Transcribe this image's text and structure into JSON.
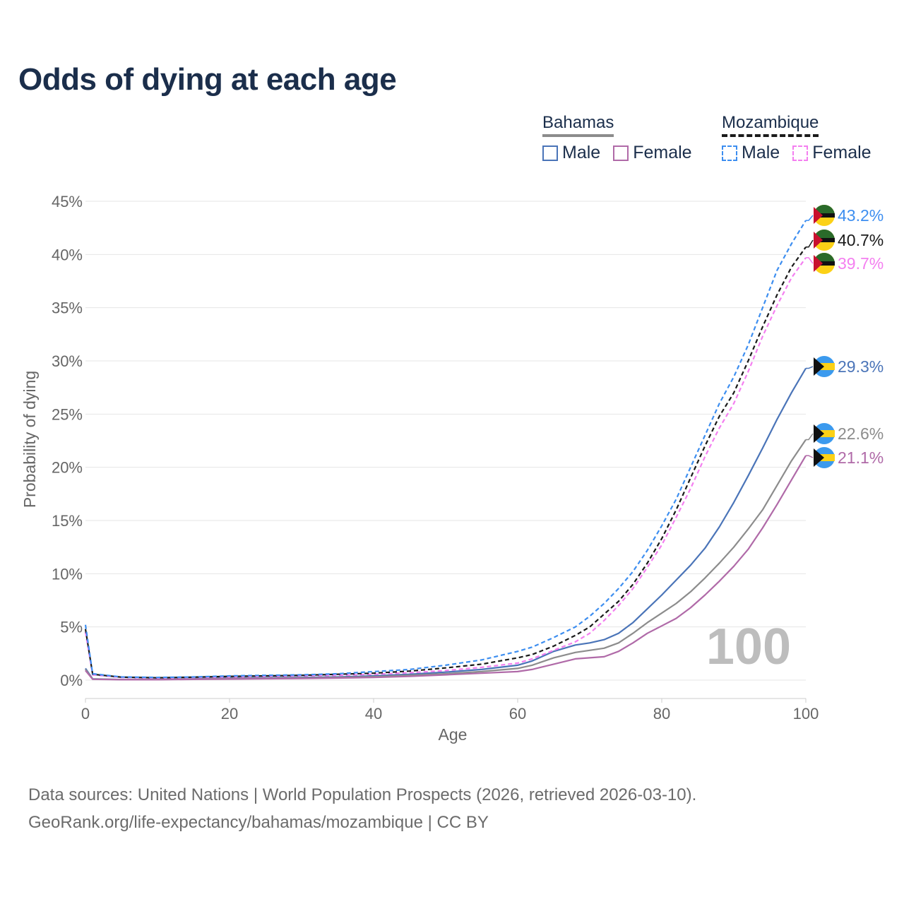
{
  "title": "Odds of dying at each age",
  "legend": {
    "groups": [
      {
        "name": "Bahamas",
        "style": "solid",
        "items": [
          {
            "label": "Male",
            "color": "#4a74b8"
          },
          {
            "label": "Female",
            "color": "#b06aa8"
          }
        ]
      },
      {
        "name": "Mozambique",
        "style": "dashed",
        "items": [
          {
            "label": "Male",
            "color": "#3d8ef0"
          },
          {
            "label": "Female",
            "color": "#f47ff0"
          }
        ]
      }
    ]
  },
  "watermark": "100",
  "sources": {
    "line1": "Data sources: United Nations | World Population Prospects (2026, retrieved 2026-03-10).",
    "line2": "GeoRank.org/life-expectancy/bahamas/mozambique | CC BY"
  },
  "chart_data": {
    "type": "line",
    "title": "Odds of dying at each age",
    "xlabel": "Age",
    "ylabel": "Probability of dying",
    "xlim": [
      0,
      100
    ],
    "ylim": [
      0,
      45
    ],
    "xticks": [
      0,
      20,
      40,
      60,
      80,
      100
    ],
    "yticks": [
      0,
      5,
      10,
      15,
      20,
      25,
      30,
      35,
      40,
      45
    ],
    "ytick_labels": [
      "0%",
      "5%",
      "10%",
      "15%",
      "20%",
      "25%",
      "30%",
      "35%",
      "40%",
      "45%"
    ],
    "grid": true,
    "x": [
      0,
      1,
      5,
      10,
      15,
      20,
      25,
      30,
      35,
      40,
      45,
      50,
      55,
      60,
      62,
      65,
      68,
      70,
      72,
      74,
      76,
      78,
      80,
      82,
      84,
      86,
      88,
      90,
      92,
      94,
      96,
      98,
      100
    ],
    "series": [
      {
        "name": "Mozambique Male",
        "country": "Mozambique",
        "sex": "Male",
        "color": "#3d8ef0",
        "dash": true,
        "end_label": "43.2%",
        "values": [
          5.2,
          0.6,
          0.3,
          0.25,
          0.3,
          0.4,
          0.45,
          0.5,
          0.6,
          0.8,
          1.0,
          1.4,
          1.9,
          2.7,
          3.1,
          4.0,
          5.0,
          6.0,
          7.2,
          8.6,
          10.2,
          12.2,
          14.5,
          17.0,
          20.0,
          23.0,
          26.0,
          28.5,
          31.5,
          35.0,
          38.5,
          41.0,
          43.2
        ]
      },
      {
        "name": "Mozambique Total",
        "country": "Mozambique",
        "sex": "Total",
        "color": "#1a1a1a",
        "dash": true,
        "end_label": "40.7%",
        "values": [
          4.8,
          0.55,
          0.28,
          0.22,
          0.28,
          0.35,
          0.4,
          0.45,
          0.55,
          0.65,
          0.85,
          1.15,
          1.5,
          2.1,
          2.4,
          3.2,
          4.2,
          5.0,
          6.2,
          7.4,
          9.0,
          11.0,
          13.3,
          16.0,
          19.0,
          22.0,
          24.8,
          27.0,
          30.0,
          33.2,
          36.2,
          38.8,
          40.7
        ]
      },
      {
        "name": "Mozambique Female",
        "country": "Mozambique",
        "sex": "Female",
        "color": "#f47ff0",
        "dash": true,
        "end_label": "39.7%",
        "values": [
          4.5,
          0.5,
          0.25,
          0.2,
          0.25,
          0.3,
          0.35,
          0.4,
          0.45,
          0.55,
          0.7,
          0.9,
          1.2,
          1.6,
          2.0,
          2.8,
          3.6,
          4.4,
          5.6,
          7.0,
          8.6,
          10.6,
          12.7,
          15.3,
          18.0,
          21.0,
          23.7,
          26.0,
          29.0,
          32.3,
          35.2,
          37.8,
          39.7
        ]
      },
      {
        "name": "Bahamas Male",
        "country": "Bahamas",
        "sex": "Male",
        "color": "#4a74b8",
        "dash": false,
        "end_label": "29.3%",
        "values": [
          1.1,
          0.12,
          0.05,
          0.05,
          0.12,
          0.2,
          0.22,
          0.25,
          0.3,
          0.4,
          0.55,
          0.75,
          1.0,
          1.4,
          1.8,
          2.7,
          3.3,
          3.5,
          3.8,
          4.4,
          5.4,
          6.7,
          8.0,
          9.4,
          10.8,
          12.4,
          14.4,
          16.7,
          19.2,
          21.8,
          24.5,
          27.0,
          29.3
        ]
      },
      {
        "name": "Bahamas Total",
        "country": "Bahamas",
        "sex": "Total",
        "color": "#8c8c8c",
        "dash": false,
        "end_label": "22.6%",
        "values": [
          1.0,
          0.1,
          0.05,
          0.05,
          0.1,
          0.15,
          0.18,
          0.2,
          0.25,
          0.32,
          0.45,
          0.6,
          0.8,
          1.1,
          1.4,
          2.1,
          2.6,
          2.8,
          3.0,
          3.5,
          4.4,
          5.4,
          6.3,
          7.2,
          8.3,
          9.6,
          11.0,
          12.5,
          14.2,
          16.0,
          18.3,
          20.6,
          22.6
        ]
      },
      {
        "name": "Bahamas Female",
        "country": "Bahamas",
        "sex": "Female",
        "color": "#b06aa8",
        "dash": false,
        "end_label": "21.1%",
        "values": [
          0.9,
          0.08,
          0.04,
          0.04,
          0.07,
          0.1,
          0.13,
          0.15,
          0.2,
          0.25,
          0.35,
          0.5,
          0.65,
          0.8,
          1.0,
          1.5,
          2.0,
          2.1,
          2.2,
          2.7,
          3.5,
          4.4,
          5.1,
          5.8,
          6.8,
          8.0,
          9.3,
          10.7,
          12.3,
          14.3,
          16.5,
          18.8,
          21.1
        ]
      }
    ]
  }
}
